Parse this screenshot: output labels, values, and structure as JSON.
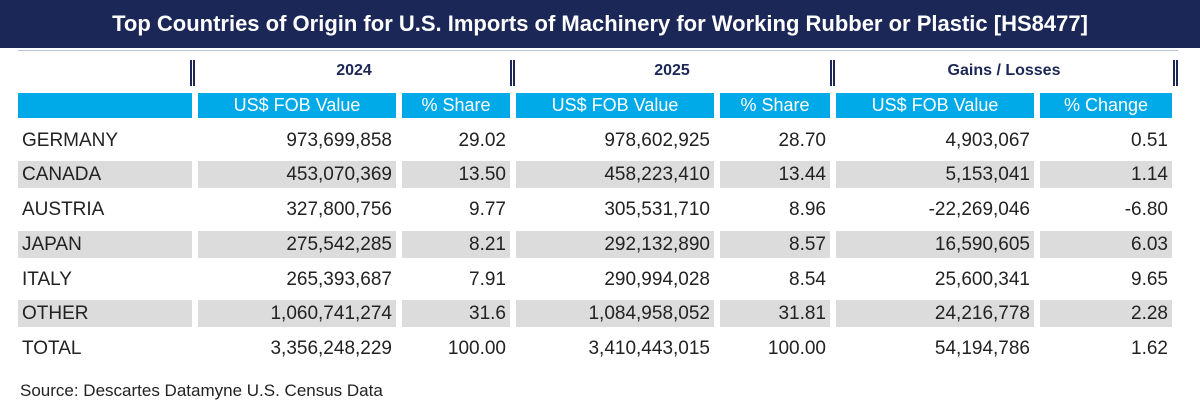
{
  "title": "Top Countries of Origin for U.S. Imports of  Machinery  for Working Rubber or Plastic [HS8477]",
  "groups": [
    "2024",
    "2025",
    "Gains / Losses"
  ],
  "columns": [
    "US$ FOB Value",
    "% Share",
    "US$ FOB Value",
    "% Share",
    "US$ FOB Value",
    "% Change"
  ],
  "rows": [
    [
      "GERMANY",
      "973,699,858",
      "29.02",
      "978,602,925",
      "28.70",
      "4,903,067",
      "0.51"
    ],
    [
      "CANADA",
      "453,070,369",
      "13.50",
      "458,223,410",
      "13.44",
      "5,153,041",
      "1.14"
    ],
    [
      "AUSTRIA",
      "327,800,756",
      "9.77",
      "305,531,710",
      "8.96",
      "-22,269,046",
      "-6.80"
    ],
    [
      "JAPAN",
      "275,542,285",
      "8.21",
      "292,132,890",
      "8.57",
      "16,590,605",
      "6.03"
    ],
    [
      "ITALY",
      "265,393,687",
      "7.91",
      "290,994,028",
      "8.54",
      "25,600,341",
      "9.65"
    ],
    [
      "OTHER",
      "1,060,741,274",
      "31.6",
      "1,084,958,052",
      "31.81",
      "24,216,778",
      "2.28"
    ],
    [
      "TOTAL",
      "3,356,248,229",
      "100.00",
      "3,410,443,015",
      "100.00",
      "54,194,786",
      "1.62"
    ]
  ],
  "source": "Source: Descartes Datamyne U.S. Census Data",
  "colors": {
    "title_bg": "#1b2757",
    "header_bg": "#00a9e8",
    "stripe": "#dcdcdc"
  }
}
